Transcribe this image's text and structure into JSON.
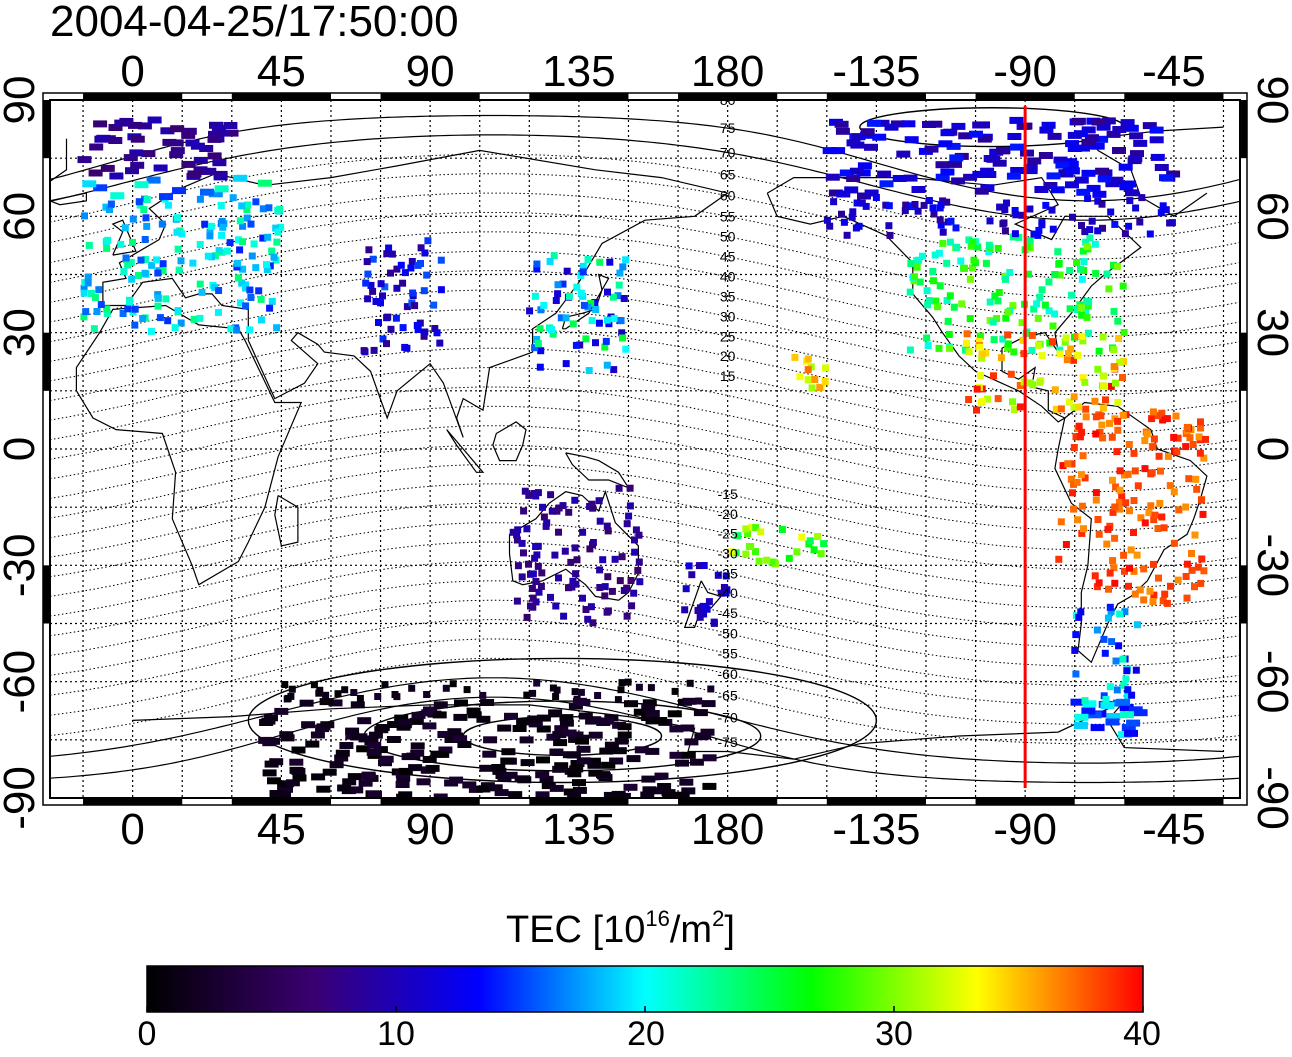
{
  "timestamp": "2004-04-25/17:50:00",
  "map": {
    "top_axis_labels": [
      "0",
      "45",
      "90",
      "135",
      "180",
      "-135",
      "-90",
      "-45"
    ],
    "bottom_axis_labels": [
      "0",
      "45",
      "90",
      "135",
      "180",
      "-135",
      "-90",
      "-45"
    ],
    "left_axis_labels": [
      "90",
      "60",
      "30",
      "0",
      "-30",
      "-60",
      "-90"
    ],
    "right_axis_labels": [
      "90",
      "60",
      "30",
      "0",
      "-30",
      "-60",
      "-90"
    ],
    "lon_ticks": [
      0,
      45,
      90,
      135,
      180,
      -135,
      -90,
      -45
    ],
    "lat_ticks": [
      90,
      60,
      30,
      0,
      -30,
      -60,
      -90
    ],
    "magnetic_latitude_labels": [
      "80",
      "75",
      "70",
      "65",
      "60",
      "55",
      "50",
      "45",
      "40",
      "35",
      "30",
      "25",
      "20",
      "15",
      "-15",
      "-20",
      "-25",
      "-30",
      "-35",
      "-40",
      "-45",
      "-50",
      "-55",
      "-60",
      "-65",
      "-70",
      "-75"
    ],
    "red_line_longitude": -90,
    "line_color": "#ff0000"
  },
  "colorbar": {
    "title_prefix": "TEC  [10",
    "title_exp1": "16",
    "title_mid": "/m",
    "title_exp2": "2",
    "title_suffix": "]",
    "ticks": [
      "0",
      "10",
      "20",
      "30",
      "40"
    ],
    "range": [
      0,
      40
    ],
    "colors": [
      "#000000",
      "#3a0070",
      "#0000ff",
      "#00ffff",
      "#00ff00",
      "#ffff00",
      "#ff0000"
    ]
  },
  "chart_data": {
    "type": "heatmap",
    "title": "2004-04-25/17:50:00",
    "xlabel": "",
    "ylabel": "",
    "x_range": [
      -25,
      335
    ],
    "y_range": [
      -90,
      90
    ],
    "value_label": "TEC [10^16/m^2]",
    "value_range": [
      0,
      40
    ],
    "regions": [
      {
        "lon": [
          -15,
          45
        ],
        "lat": [
          30,
          70
        ],
        "tec": [
          14,
          24
        ]
      },
      {
        "lon": [
          -15,
          30
        ],
        "lat": [
          70,
          85
        ],
        "tec": [
          6,
          10
        ]
      },
      {
        "lon": [
          70,
          95
        ],
        "lat": [
          25,
          55
        ],
        "tec": [
          8,
          16
        ]
      },
      {
        "lon": [
          120,
          150
        ],
        "lat": [
          20,
          50
        ],
        "tec": [
          10,
          26
        ]
      },
      {
        "lon": [
          -125,
          -60
        ],
        "lat": [
          25,
          55
        ],
        "tec": [
          20,
          30
        ]
      },
      {
        "lon": [
          -110,
          -60
        ],
        "lat": [
          10,
          30
        ],
        "tec": [
          30,
          40
        ]
      },
      {
        "lon": [
          -150,
          -45
        ],
        "lat": [
          55,
          85
        ],
        "tec": [
          8,
          14
        ]
      },
      {
        "lon": [
          -80,
          -35
        ],
        "lat": [
          -40,
          10
        ],
        "tec": [
          36,
          40
        ]
      },
      {
        "lon": [
          -75,
          -55
        ],
        "lat": [
          -75,
          -40
        ],
        "tec": [
          12,
          22
        ]
      },
      {
        "lon": [
          115,
          155
        ],
        "lat": [
          -45,
          -10
        ],
        "tec": [
          6,
          10
        ]
      },
      {
        "lon": [
          165,
          180
        ],
        "lat": [
          -45,
          -30
        ],
        "tec": [
          9,
          12
        ]
      },
      {
        "lon": [
          40,
          175
        ],
        "lat": [
          -90,
          -60
        ],
        "tec": [
          0,
          3
        ]
      },
      {
        "lon": [
          180,
          210
        ],
        "lat": [
          -30,
          -20
        ],
        "tec": [
          24,
          34
        ]
      },
      {
        "lon": [
          -160,
          -150
        ],
        "lat": [
          15,
          25
        ],
        "tec": [
          30,
          38
        ]
      }
    ]
  }
}
